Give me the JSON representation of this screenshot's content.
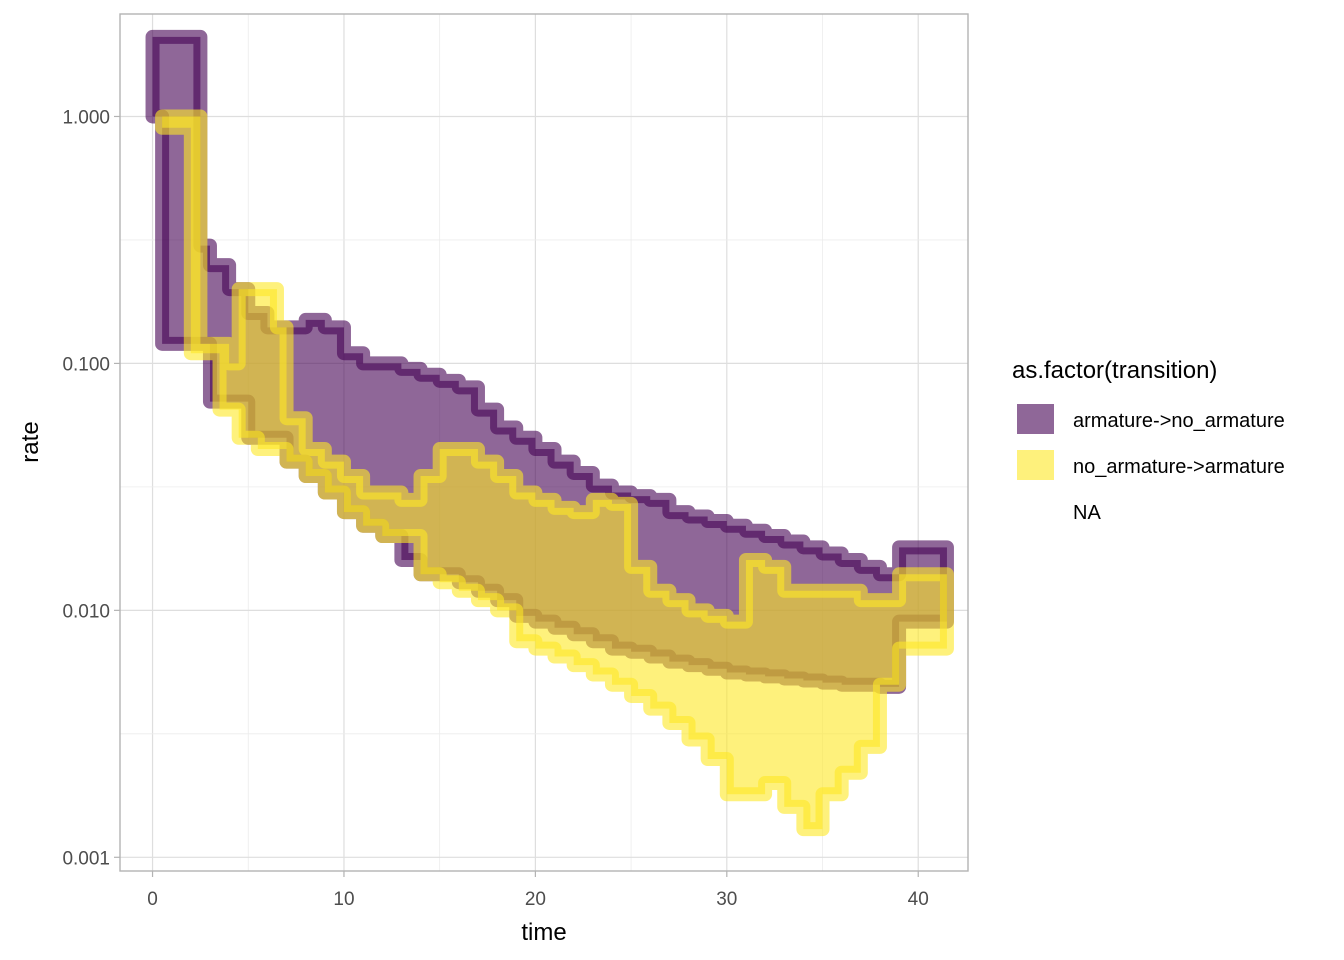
{
  "chart_data": {
    "type": "area",
    "xlabel": "time",
    "ylabel": "rate",
    "y_scale": "log10",
    "xlim": [
      -1.7,
      42.6
    ],
    "ylim": [
      0.00088,
      2.6
    ],
    "x_ticks": [
      0,
      10,
      20,
      30,
      40
    ],
    "x_tick_labels": [
      "0",
      "10",
      "20",
      "30",
      "40"
    ],
    "y_ticks": [
      0.001,
      0.01,
      0.1,
      1
    ],
    "y_tick_labels": [
      "0.001",
      "0.010",
      "0.100",
      "1.000"
    ],
    "grid": true,
    "legend": {
      "title": "as.factor(transition)",
      "position": "right",
      "entries": [
        "armature->no_armature",
        "no_armature->armature",
        "NA"
      ]
    },
    "series": [
      {
        "name": "armature->no_armature",
        "color": "#440154",
        "opacity": 0.6,
        "x": [
          0,
          0.5,
          2.5,
          3,
          4,
          5,
          6,
          7,
          8,
          9,
          10,
          11,
          12,
          13,
          14,
          15,
          16,
          17,
          18,
          19,
          20,
          21,
          22,
          23,
          24,
          25,
          26,
          27,
          28,
          29,
          30,
          31,
          32,
          33,
          34,
          35,
          36,
          37,
          38,
          39,
          40,
          41.5
        ],
        "lower": [
          1.0,
          1.0,
          0.12,
          0.12,
          0.07,
          0.07,
          0.05,
          0.05,
          0.04,
          0.035,
          0.03,
          0.025,
          0.022,
          0.02,
          0.016,
          0.014,
          0.014,
          0.013,
          0.012,
          0.011,
          0.0095,
          0.009,
          0.0085,
          0.008,
          0.0075,
          0.007,
          0.0068,
          0.0065,
          0.0062,
          0.006,
          0.0058,
          0.0056,
          0.0055,
          0.0054,
          0.0053,
          0.0052,
          0.0051,
          0.005,
          0.005,
          0.0049,
          0.009,
          0.009
        ],
        "upper": [
          2.1,
          2.1,
          0.3,
          0.25,
          0.2,
          0.16,
          0.14,
          0.14,
          0.15,
          0.14,
          0.11,
          0.1,
          0.1,
          0.095,
          0.09,
          0.085,
          0.08,
          0.065,
          0.055,
          0.05,
          0.045,
          0.04,
          0.036,
          0.032,
          0.03,
          0.029,
          0.028,
          0.025,
          0.024,
          0.023,
          0.022,
          0.021,
          0.02,
          0.019,
          0.018,
          0.017,
          0.016,
          0.015,
          0.014,
          0.018,
          0.018,
          0.018
        ]
      },
      {
        "name": "no_armature->armature",
        "color": "#FDE725",
        "opacity": 0.6,
        "x": [
          0.5,
          2,
          2.5,
          3.5,
          4,
          4.5,
          5.5,
          6.5,
          7,
          8,
          9,
          10,
          11,
          12,
          13,
          14,
          15,
          16,
          17,
          18,
          19,
          20,
          21,
          22,
          23,
          24,
          25,
          26,
          27,
          28,
          29,
          30,
          31,
          32,
          33,
          34,
          35,
          36,
          37,
          38,
          39,
          40,
          41.5
        ],
        "lower": [
          0.9,
          0.9,
          0.11,
          0.11,
          0.065,
          0.065,
          0.05,
          0.045,
          0.045,
          0.04,
          0.035,
          0.03,
          0.025,
          0.022,
          0.02,
          0.02,
          0.014,
          0.013,
          0.012,
          0.011,
          0.01,
          0.0075,
          0.007,
          0.0065,
          0.006,
          0.0055,
          0.005,
          0.0045,
          0.004,
          0.0035,
          0.003,
          0.0025,
          0.0018,
          0.0018,
          0.002,
          0.0016,
          0.0013,
          0.0018,
          0.0022,
          0.0028,
          0.005,
          0.007,
          0.007
        ],
        "upper": [
          1.0,
          1.0,
          0.12,
          0.12,
          0.1,
          0.2,
          0.2,
          0.14,
          0.06,
          0.045,
          0.04,
          0.035,
          0.03,
          0.03,
          0.028,
          0.035,
          0.045,
          0.045,
          0.04,
          0.035,
          0.03,
          0.028,
          0.026,
          0.025,
          0.028,
          0.027,
          0.015,
          0.012,
          0.011,
          0.01,
          0.0095,
          0.009,
          0.016,
          0.015,
          0.012,
          0.012,
          0.012,
          0.012,
          0.011,
          0.011,
          0.014,
          0.014,
          0.014
        ]
      }
    ]
  }
}
